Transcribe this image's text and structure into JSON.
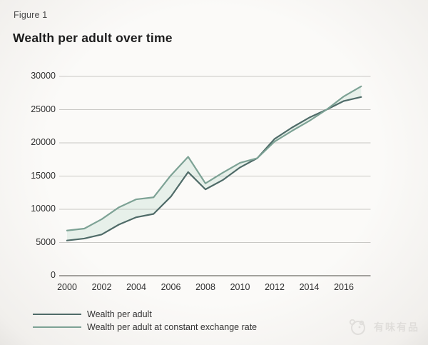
{
  "figure_label": "Figure 1",
  "title": "Wealth per adult over time",
  "watermark": {
    "text": "有味有品",
    "icon": "brand-logo-icon"
  },
  "chart_data": {
    "type": "line",
    "x": [
      2000,
      2001,
      2002,
      2003,
      2004,
      2005,
      2006,
      2007,
      2008,
      2009,
      2010,
      2011,
      2012,
      2013,
      2014,
      2015,
      2016,
      2017
    ],
    "series": [
      {
        "name": "Wealth per adult",
        "color": "#4f6b68",
        "values": [
          5300,
          5600,
          6200,
          7700,
          8800,
          9300,
          11900,
          15600,
          13000,
          14400,
          16300,
          17700,
          20600,
          22300,
          23800,
          25000,
          26300,
          26900
        ]
      },
      {
        "name": "Wealth per adult at constant exchange rate",
        "color": "#7da295",
        "values": [
          6800,
          7100,
          8500,
          10300,
          11500,
          11800,
          15100,
          17900,
          13900,
          15500,
          17000,
          17700,
          20200,
          21800,
          23300,
          25000,
          27000,
          28500
        ]
      }
    ],
    "title": "Wealth per adult over time",
    "xlabel": "",
    "ylabel": "",
    "ylim": [
      0,
      30000
    ],
    "y_ticks": [
      0,
      5000,
      10000,
      15000,
      20000,
      25000,
      30000
    ],
    "x_ticks": [
      2000,
      2002,
      2004,
      2006,
      2008,
      2010,
      2012,
      2014,
      2016
    ],
    "grid": true,
    "legend_position": "bottom-left",
    "fill_between_series": "rgba(160,205,185,0.22)",
    "gridline_color": "#c9c8c5",
    "axis_color": "#96948f"
  }
}
